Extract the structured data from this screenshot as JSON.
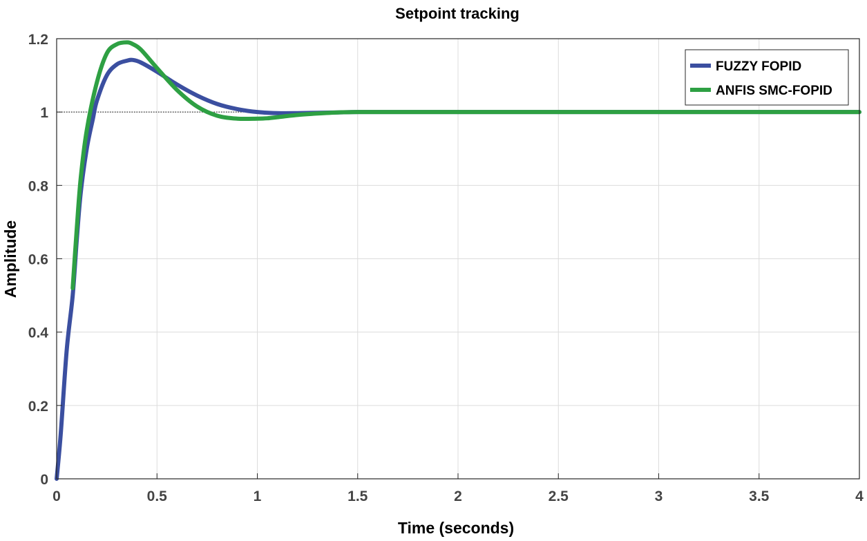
{
  "chart_data": {
    "type": "line",
    "title": "Setpoint tracking",
    "xlabel": "Time (seconds)",
    "ylabel": "Amplitude",
    "xlim": [
      0,
      4
    ],
    "ylim": [
      0,
      1.2
    ],
    "xticks": [
      0,
      0.5,
      1,
      1.5,
      2,
      2.5,
      3,
      3.5,
      4
    ],
    "xtick_labels": [
      "0",
      "0.5",
      "1",
      "1.5",
      "2",
      "2.5",
      "3",
      "3.5",
      "4"
    ],
    "yticks": [
      0,
      0.2,
      0.4,
      0.6,
      0.8,
      1.0,
      1.2
    ],
    "ytick_labels": [
      "0",
      "0.2",
      "0.4",
      "0.6",
      "0.8",
      "1",
      "1.2"
    ],
    "grid": true,
    "legend_position": "top-right",
    "reference_line": {
      "y": 1.0,
      "style": "dotted"
    },
    "series": [
      {
        "name": "FUZZY FOPID",
        "color": "#3b4fa0",
        "x": [
          0,
          0.02,
          0.05,
          0.08,
          0.1,
          0.12,
          0.15,
          0.18,
          0.2,
          0.25,
          0.3,
          0.35,
          0.38,
          0.42,
          0.5,
          0.6,
          0.7,
          0.8,
          0.9,
          1.0,
          1.1,
          1.2,
          1.3,
          1.4,
          1.5,
          1.7,
          2.0,
          2.5,
          3.0,
          3.5,
          4.0
        ],
        "y": [
          0,
          0.12,
          0.35,
          0.5,
          0.65,
          0.78,
          0.9,
          0.98,
          1.03,
          1.1,
          1.13,
          1.14,
          1.142,
          1.135,
          1.11,
          1.075,
          1.045,
          1.022,
          1.008,
          1.0,
          0.997,
          0.997,
          0.998,
          0.999,
          1.0,
          1.0,
          1.0,
          1.0,
          1.0,
          1.0,
          1.0
        ]
      },
      {
        "name": "ANFIS SMC-FOPID",
        "color": "#2ea043",
        "x": [
          0.08,
          0.1,
          0.12,
          0.15,
          0.2,
          0.25,
          0.3,
          0.35,
          0.38,
          0.42,
          0.5,
          0.6,
          0.7,
          0.8,
          0.9,
          1.0,
          1.05,
          1.1,
          1.2,
          1.3,
          1.4,
          1.5,
          1.7,
          2.0,
          2.5,
          3.0,
          3.5,
          4.0
        ],
        "y": [
          0.52,
          0.68,
          0.82,
          0.95,
          1.08,
          1.16,
          1.185,
          1.19,
          1.185,
          1.17,
          1.12,
          1.06,
          1.015,
          0.99,
          0.982,
          0.982,
          0.983,
          0.986,
          0.992,
          0.996,
          0.999,
          1.0,
          1.0,
          1.0,
          1.0,
          1.0,
          1.0,
          1.0
        ]
      }
    ]
  }
}
